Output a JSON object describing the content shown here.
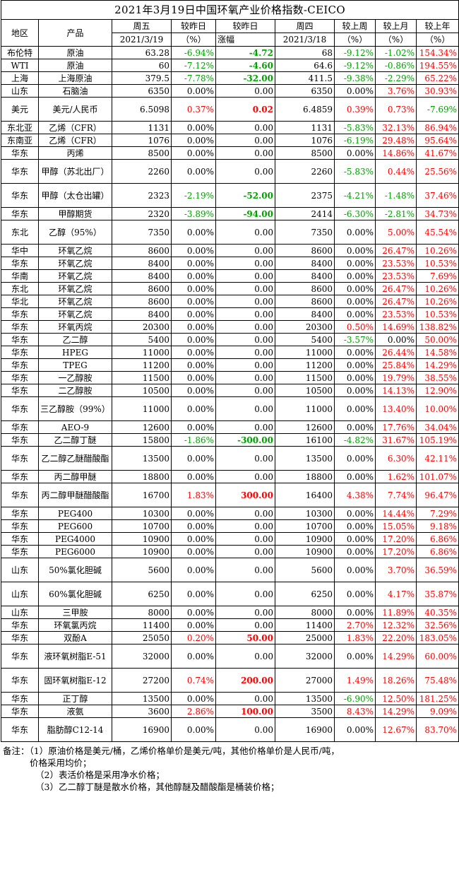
{
  "title": "2021年3月19日中国环氧产业价格指数-CEICO",
  "header": {
    "region": "地区",
    "product": "产品",
    "fri": "周五",
    "fri_date": "2021/3/19",
    "chg_day": "较昨日",
    "chg_day_unit": "（%）",
    "chg_day_amt": "较昨日",
    "chg_day_amt_sub": "涨幅",
    "thu": "周四",
    "thu_date": "2021/3/18",
    "chg_week": "较上周",
    "chg_week_unit": "（%）",
    "chg_month": "较上月",
    "chg_month_unit": "（%）",
    "chg_year": "较上年",
    "chg_year_unit": "（%）"
  },
  "colors": {
    "red": "#ff0000",
    "green": "#00a000"
  },
  "rows": [
    {
      "region": "布伦特",
      "product": "原油",
      "fri": "63.28",
      "d": "-6.94%",
      "da": "-4.72",
      "thu": "68",
      "w": "-9.12%",
      "m": "-1.02%",
      "y": "154.34%",
      "h": 18
    },
    {
      "region": "WTI",
      "product": "原油",
      "fri": "60",
      "d": "-7.12%",
      "da": "-4.60",
      "thu": "64.6",
      "w": "-9.12%",
      "m": "-0.86%",
      "y": "194.55%",
      "h": 18
    },
    {
      "region": "上海",
      "product": "上海原油",
      "fri": "379.5",
      "d": "-7.78%",
      "da": "-32.00",
      "thu": "411.5",
      "w": "-9.38%",
      "m": "-2.29%",
      "y": "65.22%",
      "h": 18
    },
    {
      "region": "山东",
      "product": "石脑油",
      "fri": "6350",
      "d": "0.00%",
      "da": "0.00",
      "thu": "6350",
      "w": "0.00%",
      "m": "3.76%",
      "y": "30.93%",
      "h": 18
    },
    {
      "region": "美元",
      "product": "美元/人民币",
      "fri": "6.5098",
      "d": "0.37%",
      "da": "0.02",
      "thu": "6.4859",
      "w": "0.39%",
      "m": "0.73%",
      "y": "-7.69%",
      "h": 36
    },
    {
      "region": "东北亚",
      "product": "乙烯（CFR）",
      "fri": "1131",
      "d": "0.00%",
      "da": "0.00",
      "thu": "1131",
      "w": "-5.83%",
      "m": "32.13%",
      "y": "86.94%",
      "h": 18
    },
    {
      "region": "东南亚",
      "product": "乙烯（CFR）",
      "fri": "1076",
      "d": "0.00%",
      "da": "0.00",
      "thu": "1076",
      "w": "-6.19%",
      "m": "29.48%",
      "y": "95.64%",
      "h": 18
    },
    {
      "region": "华东",
      "product": "丙烯",
      "fri": "8500",
      "d": "0.00%",
      "da": "0.00",
      "thu": "8500",
      "w": "0.00%",
      "m": "14.86%",
      "y": "41.67%",
      "h": 18
    },
    {
      "region": "华东",
      "product": "甲醇（苏北出厂）",
      "fri": "2260",
      "d": "0.00%",
      "da": "0.00",
      "thu": "2260",
      "w": "-5.83%",
      "m": "0.44%",
      "y": "25.56%",
      "h": 36
    },
    {
      "region": "华东",
      "product": "甲醇（太仓出罐）",
      "fri": "2323",
      "d": "-2.19%",
      "da": "-52.00",
      "thu": "2375",
      "w": "-4.21%",
      "m": "-1.48%",
      "y": "37.46%",
      "h": 36
    },
    {
      "region": "华东",
      "product": "甲醇期货",
      "fri": "2320",
      "d": "-3.89%",
      "da": "-94.00",
      "thu": "2414",
      "w": "-6.30%",
      "m": "-2.81%",
      "y": "34.73%",
      "h": 18
    },
    {
      "region": "东北",
      "product": "乙醇（95%）",
      "fri": "7350",
      "d": "0.00%",
      "da": "0.00",
      "thu": "7350",
      "w": "0.00%",
      "m": "5.00%",
      "y": "45.54%",
      "h": 36
    },
    {
      "region": "华中",
      "product": "环氧乙烷",
      "fri": "8600",
      "d": "0.00%",
      "da": "0.00",
      "thu": "8600",
      "w": "0.00%",
      "m": "26.47%",
      "y": "10.26%",
      "h": 18
    },
    {
      "region": "华东",
      "product": "环氧乙烷",
      "fri": "8400",
      "d": "0.00%",
      "da": "0.00",
      "thu": "8400",
      "w": "0.00%",
      "m": "23.53%",
      "y": "10.53%",
      "h": 18
    },
    {
      "region": "华南",
      "product": "环氧乙烷",
      "fri": "8400",
      "d": "0.00%",
      "da": "0.00",
      "thu": "8400",
      "w": "0.00%",
      "m": "23.53%",
      "y": "7.69%",
      "h": 18
    },
    {
      "region": "东北",
      "product": "环氧乙烷",
      "fri": "8600",
      "d": "0.00%",
      "da": "0.00",
      "thu": "8600",
      "w": "0.00%",
      "m": "26.47%",
      "y": "10.26%",
      "h": 18
    },
    {
      "region": "华北",
      "product": "环氧乙烷",
      "fri": "8600",
      "d": "0.00%",
      "da": "0.00",
      "thu": "8600",
      "w": "0.00%",
      "m": "26.47%",
      "y": "10.26%",
      "h": 18
    },
    {
      "region": "华东",
      "product": "环氧乙烷",
      "fri": "8400",
      "d": "0.00%",
      "da": "0.00",
      "thu": "8400",
      "w": "0.00%",
      "m": "23.53%",
      "y": "10.53%",
      "h": 18
    },
    {
      "region": "华东",
      "product": "环氧丙烷",
      "fri": "20300",
      "d": "0.00%",
      "da": "0.00",
      "thu": "20300",
      "w": "0.50%",
      "m": "14.69%",
      "y": "138.82%",
      "h": 18
    },
    {
      "region": "华东",
      "product": "乙二醇",
      "fri": "5400",
      "d": "0.00%",
      "da": "0.00",
      "thu": "5400",
      "w": "-3.57%",
      "m": "0.00%",
      "y": "50.00%",
      "h": 18
    },
    {
      "region": "华东",
      "product": "HPEG",
      "fri": "11000",
      "d": "0.00%",
      "da": "0.00",
      "thu": "11000",
      "w": "0.00%",
      "m": "26.44%",
      "y": "14.58%",
      "h": 18
    },
    {
      "region": "华东",
      "product": "TPEG",
      "fri": "11200",
      "d": "0.00%",
      "da": "0.00",
      "thu": "11200",
      "w": "0.00%",
      "m": "25.84%",
      "y": "14.29%",
      "h": 18
    },
    {
      "region": "华东",
      "product": "一乙醇胺",
      "fri": "11500",
      "d": "0.00%",
      "da": "0.00",
      "thu": "11500",
      "w": "0.00%",
      "m": "19.79%",
      "y": "38.55%",
      "h": 18
    },
    {
      "region": "华东",
      "product": "二乙醇胺",
      "fri": "10500",
      "d": "0.00%",
      "da": "0.00",
      "thu": "10500",
      "w": "0.00%",
      "m": "14.13%",
      "y": "12.90%",
      "h": 18
    },
    {
      "region": "华东",
      "product": "三乙醇胺（99%）",
      "fri": "11000",
      "d": "0.00%",
      "da": "0.00",
      "thu": "11000",
      "w": "0.00%",
      "m": "13.40%",
      "y": "10.00%",
      "h": 36
    },
    {
      "region": "华东",
      "product": "AEO-9",
      "fri": "12600",
      "d": "0.00%",
      "da": "0.00",
      "thu": "12600",
      "w": "0.00%",
      "m": "17.76%",
      "y": "34.04%",
      "h": 18
    },
    {
      "region": "华东",
      "product": "乙二醇丁醚",
      "fri": "15800",
      "d": "-1.86%",
      "da": "-300.00",
      "thu": "16100",
      "w": "-4.82%",
      "m": "31.67%",
      "y": "105.19%",
      "h": 18
    },
    {
      "region": "华东",
      "product": "乙二醇乙醚醋酸酯",
      "fri": "13500",
      "d": "0.00%",
      "da": "0.00",
      "thu": "13500",
      "w": "0.00%",
      "m": "6.30%",
      "y": "42.11%",
      "h": 36
    },
    {
      "region": "华东",
      "product": "丙二醇甲醚",
      "fri": "18800",
      "d": "0.00%",
      "da": "0.00",
      "thu": "18800",
      "w": "0.00%",
      "m": "1.62%",
      "y": "101.07%",
      "h": 18
    },
    {
      "region": "华东",
      "product": "丙二醇甲醚醋酸酯",
      "fri": "16700",
      "d": "1.83%",
      "da": "300.00",
      "thu": "16400",
      "w": "4.38%",
      "m": "7.74%",
      "y": "96.47%",
      "h": 36
    },
    {
      "region": "华东",
      "product": "PEG400",
      "fri": "10300",
      "d": "0.00%",
      "da": "0.00",
      "thu": "10300",
      "w": "0.00%",
      "m": "14.44%",
      "y": "7.29%",
      "h": 18
    },
    {
      "region": "华东",
      "product": "PEG600",
      "fri": "10700",
      "d": "0.00%",
      "da": "0.00",
      "thu": "10700",
      "w": "0.00%",
      "m": "15.05%",
      "y": "9.18%",
      "h": 18
    },
    {
      "region": "华东",
      "product": "PEG4000",
      "fri": "10900",
      "d": "0.00%",
      "da": "0.00",
      "thu": "10900",
      "w": "0.00%",
      "m": "17.20%",
      "y": "6.86%",
      "h": 18
    },
    {
      "region": "华东",
      "product": "PEG6000",
      "fri": "10900",
      "d": "0.00%",
      "da": "0.00",
      "thu": "10900",
      "w": "0.00%",
      "m": "17.20%",
      "y": "6.86%",
      "h": 18
    },
    {
      "region": "山东",
      "product": "50%氯化胆碱",
      "fri": "5600",
      "d": "0.00%",
      "da": "0.00",
      "thu": "5600",
      "w": "0.00%",
      "m": "3.70%",
      "y": "36.59%",
      "h": 36
    },
    {
      "region": "山东",
      "product": "60%氯化胆碱",
      "fri": "6250",
      "d": "0.00%",
      "da": "0.00",
      "thu": "6250",
      "w": "0.00%",
      "m": "4.17%",
      "y": "35.87%",
      "h": 36
    },
    {
      "region": "山东",
      "product": "三甲胺",
      "fri": "8000",
      "d": "0.00%",
      "da": "0.00",
      "thu": "8000",
      "w": "0.00%",
      "m": "11.89%",
      "y": "40.35%",
      "h": 18
    },
    {
      "region": "华东",
      "product": "环氧氯丙烷",
      "fri": "11400",
      "d": "0.00%",
      "da": "0.00",
      "thu": "11400",
      "w": "2.70%",
      "m": "12.32%",
      "y": "32.56%",
      "h": 18
    },
    {
      "region": "华东",
      "product": "双酚A",
      "fri": "25050",
      "d": "0.20%",
      "da": "50.00",
      "thu": "25000",
      "w": "1.83%",
      "m": "22.20%",
      "y": "183.05%",
      "h": 18
    },
    {
      "region": "华东",
      "product": "液环氧树脂E-51",
      "fri": "32000",
      "d": "0.00%",
      "da": "0.00",
      "thu": "32000",
      "w": "0.00%",
      "m": "14.29%",
      "y": "60.00%",
      "h": 36
    },
    {
      "region": "华东",
      "product": "固环氧树脂E-12",
      "fri": "27200",
      "d": "0.74%",
      "da": "200.00",
      "thu": "27000",
      "w": "1.49%",
      "m": "18.26%",
      "y": "75.48%",
      "h": 36
    },
    {
      "region": "华东",
      "product": "正丁醇",
      "fri": "13500",
      "d": "0.00%",
      "da": "0.00",
      "thu": "13500",
      "w": "-6.90%",
      "m": "12.50%",
      "y": "181.25%",
      "h": 18
    },
    {
      "region": "华东",
      "product": "液氨",
      "fri": "3600",
      "d": "2.86%",
      "da": "100.00",
      "thu": "3500",
      "w": "8.43%",
      "m": "14.29%",
      "y": "9.09%",
      "h": 18
    },
    {
      "region": "华东",
      "product": "脂肪醇C12-14",
      "fri": "16900",
      "d": "0.00%",
      "da": "0.00",
      "thu": "16900",
      "w": "0.00%",
      "m": "12.67%",
      "y": "83.70%",
      "h": 36
    }
  ],
  "notes": {
    "n1": "备注：（1）原油价格是美元/桶，乙烯价格单价是美元/吨，其他价格单价是人民币/吨，",
    "n1b": "价格采用均价；",
    "n2": "（2）表活价格是采用净水价格；",
    "n3": "（3）乙二醇丁醚是散水价格，其他醇醚及醋酸酯是桶装价格；"
  }
}
